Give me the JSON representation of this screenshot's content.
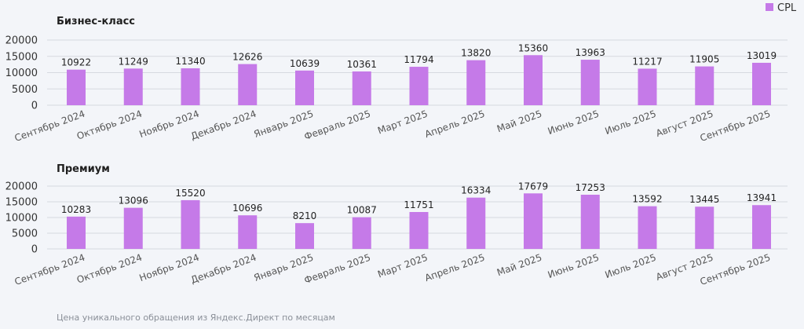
{
  "legend": {
    "label": "CPL",
    "color": "#c57ae8"
  },
  "caption": "Цена уникального обращения из Яндекс.Директ по месяцам",
  "chart_data": [
    {
      "type": "bar",
      "title": "Бизнес-класс",
      "categories": [
        "Сентябрь 2024",
        "Октябрь 2024",
        "Ноябрь 2024",
        "Декабрь 2024",
        "Январь 2025",
        "Февраль 2025",
        "Март 2025",
        "Апрель 2025",
        "Май 2025",
        "Июнь 2025",
        "Июль 2025",
        "Август 2025",
        "Сентябрь 2025"
      ],
      "series": [
        {
          "name": "CPL",
          "values": [
            10922,
            11249,
            11340,
            12626,
            10639,
            10361,
            11794,
            13820,
            15360,
            13963,
            11217,
            11905,
            13019
          ]
        }
      ],
      "ylim": [
        0,
        20000
      ],
      "yticks": [
        "0",
        "5000",
        "10000",
        "15000",
        "20000"
      ],
      "grid": true
    },
    {
      "type": "bar",
      "title": "Премиум",
      "categories": [
        "Сентябрь 2024",
        "Октябрь 2024",
        "Ноябрь 2024",
        "Декабрь 2024",
        "Январь 2025",
        "Февраль 2025",
        "Март 2025",
        "Апрель 2025",
        "Май 2025",
        "Июнь 2025",
        "Июль 2025",
        "Август 2025",
        "Сентябрь 2025"
      ],
      "series": [
        {
          "name": "CPL",
          "values": [
            10283,
            13096,
            15520,
            10696,
            8210,
            10087,
            11751,
            16334,
            17679,
            17253,
            13592,
            13445,
            13941
          ]
        }
      ],
      "ylim": [
        0,
        20000
      ],
      "yticks": [
        "0",
        "5000",
        "10000",
        "15000",
        "20000"
      ],
      "grid": true
    }
  ]
}
